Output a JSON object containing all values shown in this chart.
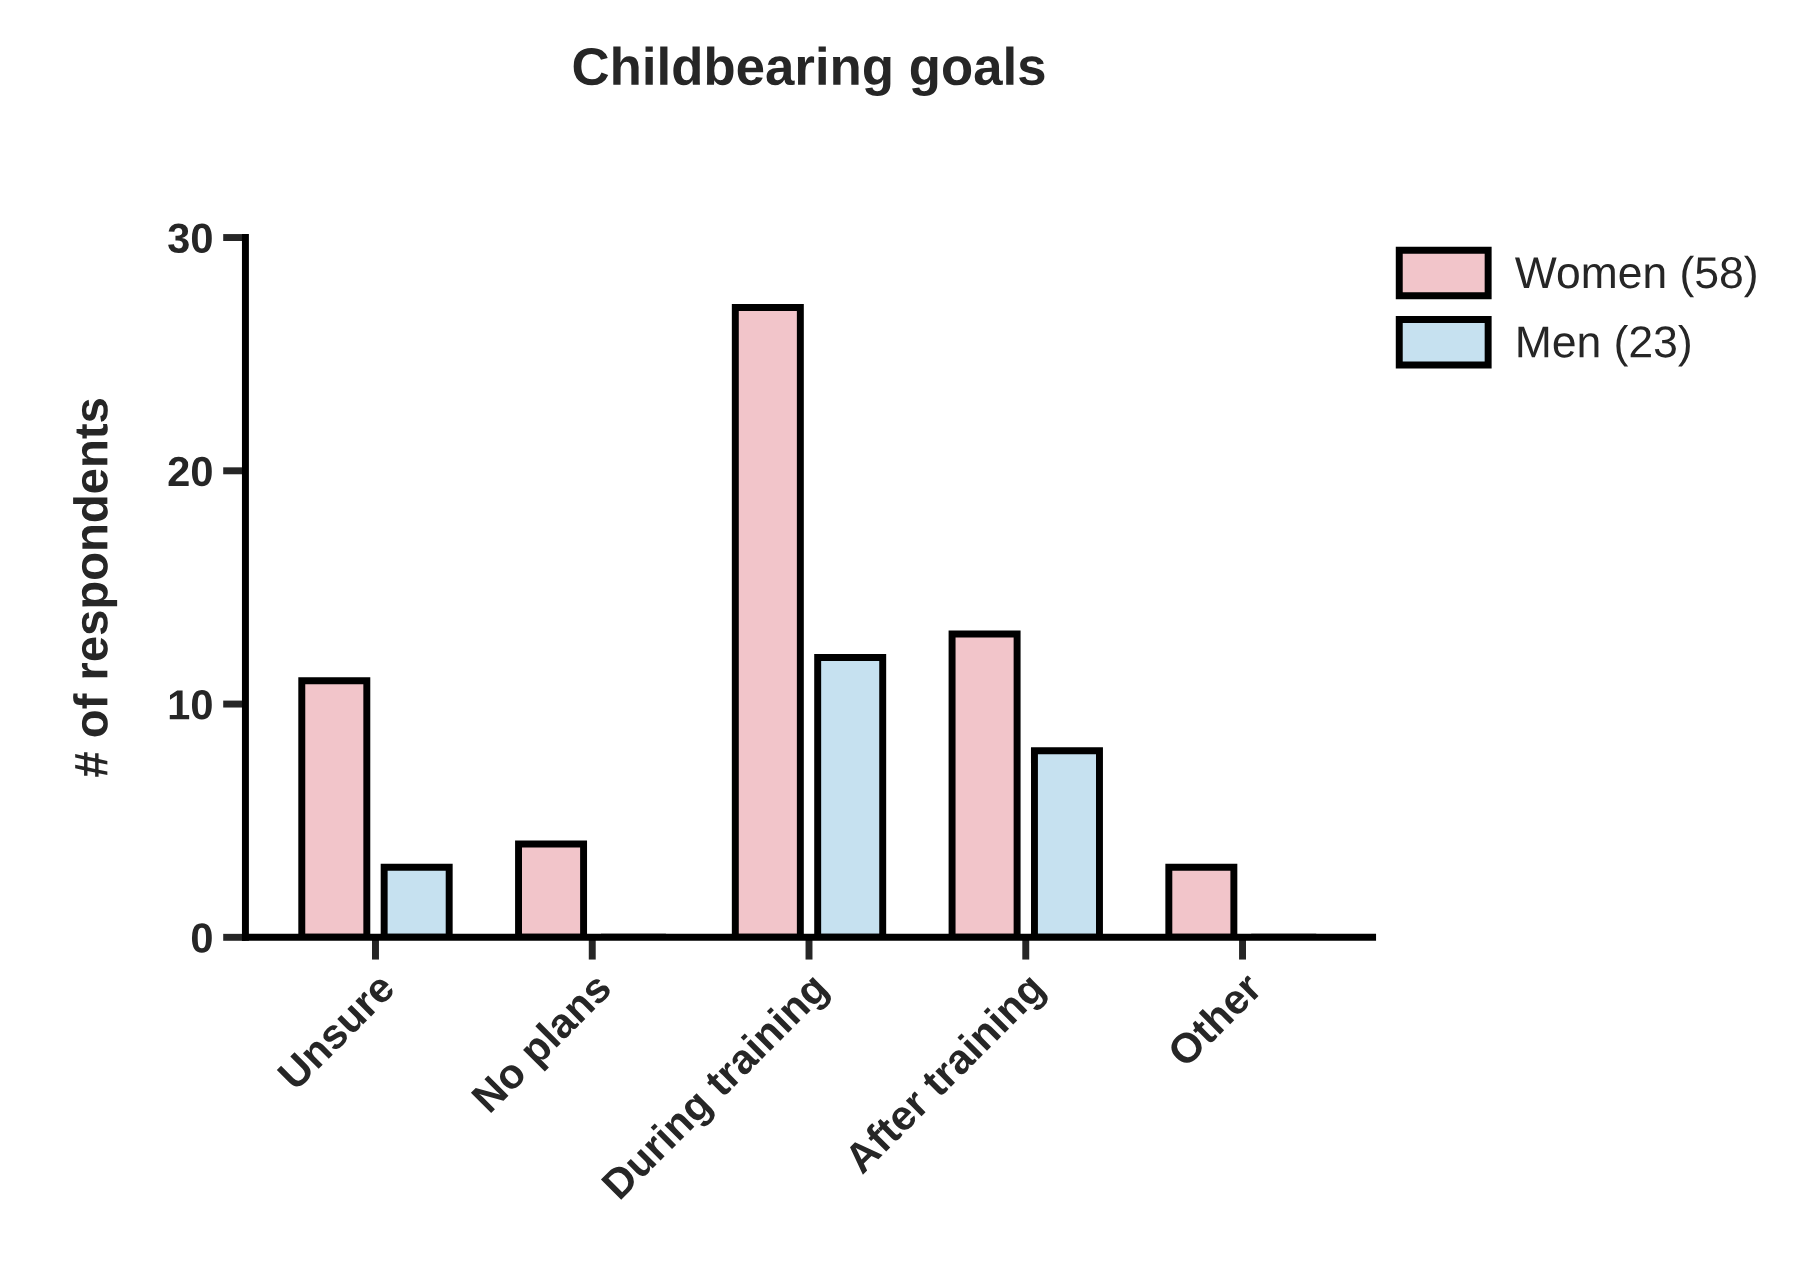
{
  "chart_data": {
    "type": "bar",
    "title": "Childbearing goals",
    "ylabel": "# of respondents",
    "categories": [
      "Unsure",
      "No plans",
      "During training",
      "After training",
      "Other"
    ],
    "series": [
      {
        "name": "Women (58)",
        "color": "#f2c5ca",
        "values": [
          11,
          4,
          27,
          13,
          3
        ]
      },
      {
        "name": "Men (23)",
        "color": "#c6e1f0",
        "values": [
          3,
          0,
          12,
          8,
          0
        ]
      }
    ],
    "ylim": [
      0,
      30
    ],
    "yticks": [
      0,
      10,
      20,
      30
    ],
    "grid": false,
    "legend": "top right"
  }
}
